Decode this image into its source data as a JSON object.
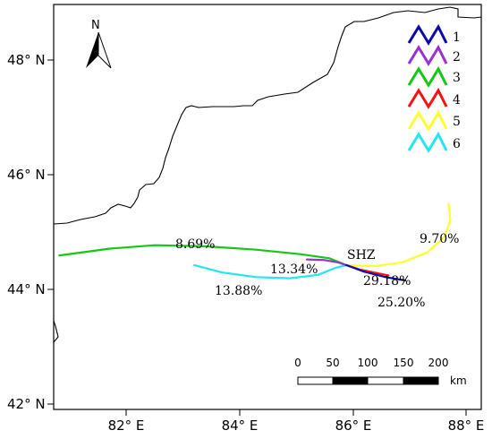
{
  "chart_data": {
    "type": "line",
    "title": "",
    "xlabel": "",
    "ylabel": "",
    "x_ticks": [
      "82° E",
      "84° E",
      "86° E",
      "88° E"
    ],
    "y_ticks": [
      "48° N",
      "46° N",
      "44° N",
      "42° N"
    ],
    "xlim": [
      80.8,
      88.4
    ],
    "ylim": [
      41.8,
      48.9
    ],
    "station": {
      "name": "SHZ",
      "lon": 86.0,
      "lat": 44.33
    },
    "series": [
      {
        "name": "1",
        "color": "#0a0aa8",
        "percent": "25.20%",
        "lon": [
          86.0,
          86.3,
          86.7,
          87.05
        ],
        "lat": [
          44.33,
          44.22,
          44.12,
          44.06
        ]
      },
      {
        "name": "2",
        "color": "#9a2fd6",
        "percent": "13.34%",
        "lon": [
          85.3,
          85.6,
          85.85,
          86.0
        ],
        "lat": [
          44.43,
          44.42,
          44.38,
          44.33
        ]
      },
      {
        "name": "3",
        "color": "#14c814",
        "percent": "8.69%",
        "lon": [
          80.9,
          81.8,
          82.6,
          83.5,
          84.4,
          85.2,
          85.7,
          86.0
        ],
        "lat": [
          44.5,
          44.62,
          44.68,
          44.66,
          44.6,
          44.52,
          44.45,
          44.33
        ]
      },
      {
        "name": "4",
        "color": "#ff1010",
        "percent": "29.18%",
        "lon": [
          86.0,
          86.25,
          86.5,
          86.75
        ],
        "lat": [
          44.33,
          44.25,
          44.2,
          44.15
        ]
      },
      {
        "name": "5",
        "color": "#ffff30",
        "percent": "9.70%",
        "lon": [
          86.0,
          86.5,
          87.0,
          87.45,
          87.75,
          87.85,
          87.82
        ],
        "lat": [
          44.33,
          44.31,
          44.38,
          44.56,
          44.83,
          45.12,
          45.4
        ]
      },
      {
        "name": "6",
        "color": "#22e6f2",
        "percent": "13.88%",
        "lon": [
          83.3,
          83.8,
          84.4,
          85.0,
          85.5,
          85.8,
          86.0
        ],
        "lat": [
          44.33,
          44.2,
          44.12,
          44.1,
          44.16,
          44.28,
          44.33
        ]
      }
    ],
    "legend_placement": "top-right",
    "scale_bar": {
      "ticks": [
        "0",
        "50",
        "100",
        "150",
        "200"
      ],
      "unit": "km"
    },
    "north_arrow": {
      "label": "N"
    },
    "grid": false
  }
}
